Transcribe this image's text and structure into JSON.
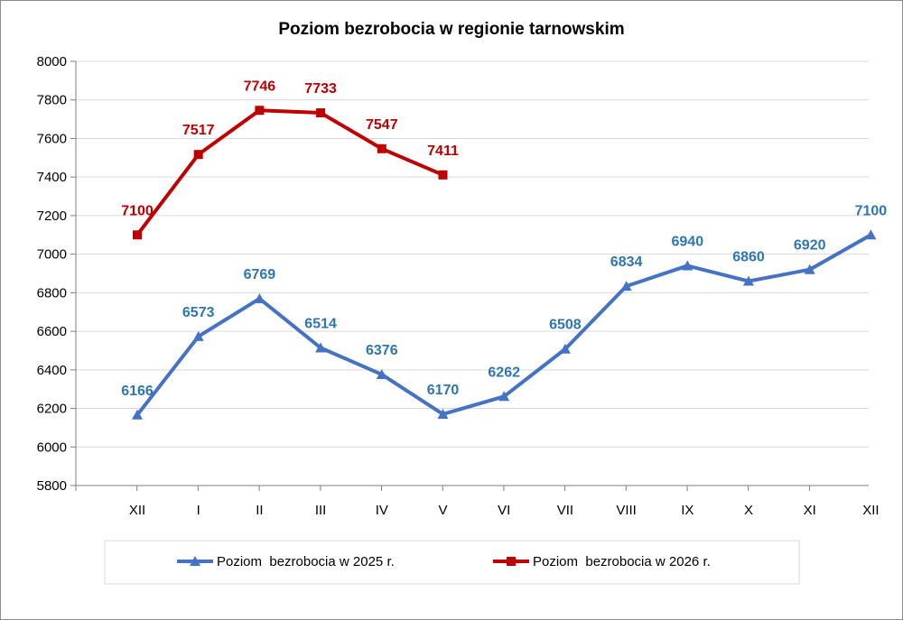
{
  "chart_data": {
    "type": "line",
    "title": "Poziom bezrobocia w regionie tarnowskim",
    "xlabel": "",
    "ylabel": "",
    "categories": [
      "XII",
      "I",
      "II",
      "III",
      "IV",
      "V",
      "VI",
      "VII",
      "VIII",
      "IX",
      "X",
      "XI",
      "XII"
    ],
    "ylim": [
      5800,
      8000
    ],
    "yticks": [
      5800,
      6000,
      6200,
      6400,
      6600,
      6800,
      7000,
      7200,
      7400,
      7600,
      7800,
      8000
    ],
    "grid": true,
    "legend_position": "bottom",
    "series": [
      {
        "name": "Poziom  bezrobocia w 2025 r.",
        "color": "#4472C4",
        "label_color": "#2E75B6",
        "marker": "triangle",
        "values": [
          6166,
          6573,
          6769,
          6514,
          6376,
          6170,
          6262,
          6508,
          6834,
          6940,
          6860,
          6920,
          7100
        ]
      },
      {
        "name": "Poziom  bezrobocia w 2026 r.",
        "color": "#C00000",
        "label_color": "#C00000",
        "marker": "square",
        "values": [
          7100,
          7517,
          7746,
          7733,
          7547,
          7411,
          null,
          null,
          null,
          null,
          null,
          null,
          null
        ]
      }
    ]
  }
}
